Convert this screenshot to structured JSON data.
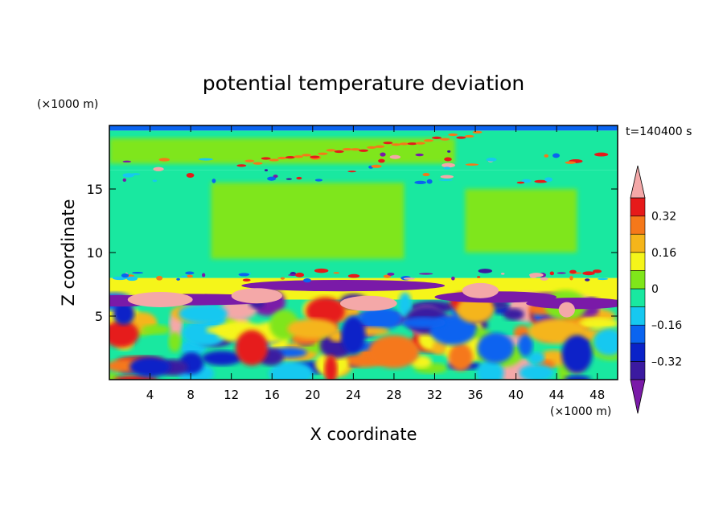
{
  "chart_data": {
    "type": "heatmap",
    "title": "potential temperature deviation",
    "xlabel": "X coordinate",
    "ylabel": "Z coordinate",
    "x_unit": "(×1000 m)",
    "y_unit": "(×1000 m)",
    "time_label": "t=140400 s",
    "xlim": [
      0,
      50
    ],
    "ylim": [
      0,
      20
    ],
    "x_ticks": [
      4,
      8,
      12,
      16,
      20,
      24,
      28,
      32,
      36,
      40,
      44,
      48
    ],
    "y_ticks": [
      5,
      10,
      15
    ],
    "colorbar": {
      "levels": [
        -0.4,
        -0.32,
        -0.24,
        -0.16,
        -0.08,
        0,
        0.08,
        0.16,
        0.24,
        0.32,
        0.4
      ],
      "colors": [
        "#7a1aa8",
        "#3b1aa0",
        "#0a22c8",
        "#0a64f0",
        "#16c8f0",
        "#19e8a0",
        "#7fe61a",
        "#f5f51a",
        "#f5b51a",
        "#f5781a",
        "#e61a1a",
        "#f4a8a8"
      ],
      "tick_values": [
        0.32,
        0.16,
        0,
        -0.16,
        -0.32
      ],
      "tick_labels": [
        "0.32",
        "0.16",
        "0",
        "–0.16",
        "–0.32"
      ],
      "extend": "both"
    },
    "layers": [
      {
        "z_range": [
          0,
          6.3
        ],
        "description_value": "mixed"
      },
      {
        "z_range": [
          6.3,
          8.0
        ],
        "value": 0.16
      },
      {
        "z_range": [
          8.0,
          16.5
        ],
        "value": 0.04
      },
      {
        "z_range": [
          16.5,
          19.6
        ],
        "value": 0.02
      }
    ]
  }
}
